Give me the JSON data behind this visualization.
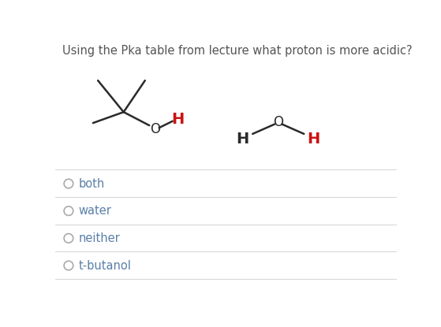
{
  "title": "Using the Pka table from lecture what proton is more acidic?",
  "title_fontsize": 10.5,
  "title_color": "#555555",
  "bg_color": "#ffffff",
  "options": [
    "both",
    "water",
    "neither",
    "t-butanol"
  ],
  "option_color": "#5a7fa8",
  "option_fontsize": 10.5,
  "radio_color": "#aaaaaa",
  "line_color": "#d8d8d8",
  "black_color": "#2a2a2a",
  "red_color": "#cc1111",
  "atom_O_color": "#2a2a2a"
}
